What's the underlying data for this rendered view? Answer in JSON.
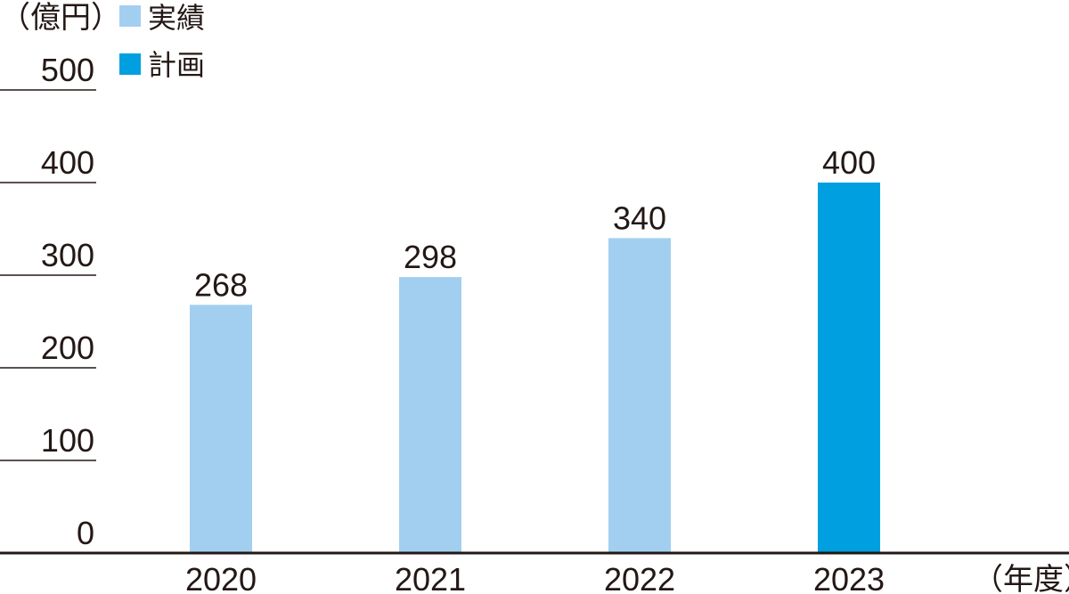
{
  "chart_data": {
    "type": "bar",
    "y_unit_label": "（億円）",
    "x_unit_label": "（年度）",
    "categories": [
      "2020",
      "2021",
      "2022",
      "2023"
    ],
    "values": [
      268,
      298,
      340,
      400
    ],
    "data_labels": [
      "268",
      "298",
      "340",
      "400"
    ],
    "bar_kind": [
      "actual",
      "actual",
      "actual",
      "plan"
    ],
    "ylim": [
      0,
      500
    ],
    "yticks": [
      0,
      100,
      200,
      300,
      400,
      500
    ],
    "ytick_labels": [
      "0",
      "100",
      "200",
      "300",
      "400",
      "500"
    ],
    "legend": [
      {
        "key": "actual",
        "label": "実績",
        "color": "#a2cfef"
      },
      {
        "key": "plan",
        "label": "計画",
        "color": "#009fe0"
      }
    ],
    "legend_placement": "top-left",
    "colors": {
      "actual": "#a2cfef",
      "plan": "#009fe0",
      "axis": "#231815"
    }
  }
}
